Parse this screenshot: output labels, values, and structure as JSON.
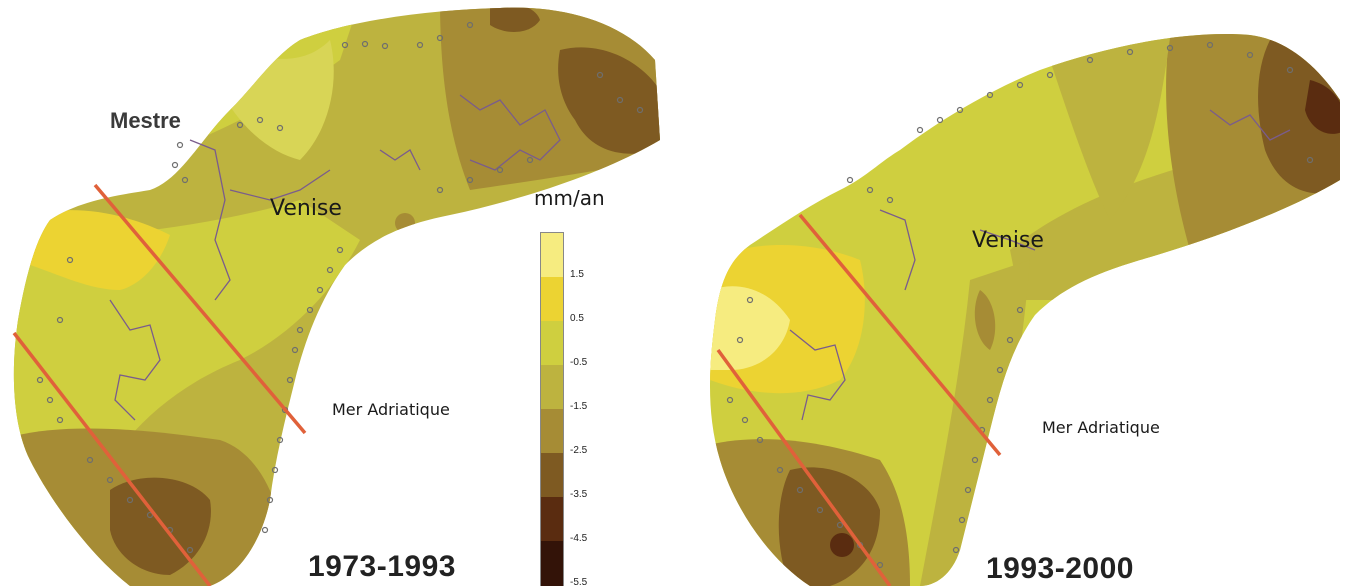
{
  "maps": [
    {
      "period": "1973-1993",
      "labels": {
        "mestre": "Mestre",
        "venise": "Venise",
        "sea": "Mer Adriatique"
      }
    },
    {
      "period": "1993-2000",
      "labels": {
        "venise": "Venise",
        "sea": "Mer Adriatique"
      }
    }
  ],
  "legend": {
    "unit": "mm/an",
    "ticks": [
      "1.5",
      "0.5",
      "-0.5",
      "-1.5",
      "-2.5",
      "-3.5",
      "-4.5",
      "-5.5"
    ],
    "colors": [
      "#f6ec80",
      "#ecd332",
      "#cfcf3f",
      "#bdb33f",
      "#a68c35",
      "#7e5a22",
      "#5a2c10",
      "#331308"
    ]
  },
  "colors": {
    "section_line": "#e0613a",
    "well_marker": "#6e6e6e",
    "canal": "#7a5c8c"
  }
}
